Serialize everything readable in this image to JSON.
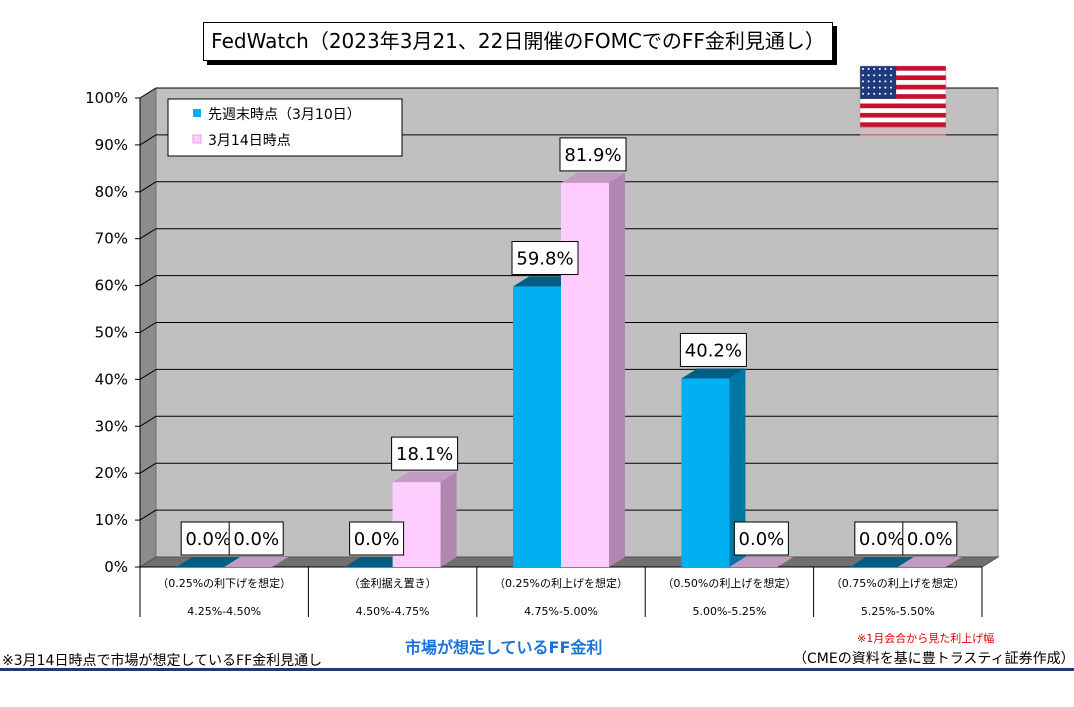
{
  "chart_data": {
    "type": "bar",
    "title": "FedWatch（2023年3月21、22日開催のFOMCでのFF金利見通し）",
    "xlabel": "市場が想定しているFF金利",
    "categories": [
      {
        "scenario": "（0.25%の利下げを想定）",
        "range": "4.25%-4.50%"
      },
      {
        "scenario": "（金利据え置き）",
        "range": "4.50%-4.75%"
      },
      {
        "scenario": "（0.25%の利上げを想定）",
        "range": "4.75%-5.00%"
      },
      {
        "scenario": "（0.50%の利上げを想定）",
        "range": "5.00%-5.25%"
      },
      {
        "scenario": "（0.75%の利上げを想定）",
        "range": "5.25%-5.50%"
      }
    ],
    "series": [
      {
        "name": "先週末時点（3月10日）",
        "color": "#00b0f0",
        "side": "#0076a3",
        "top": "#005e86",
        "values": [
          0.0,
          0.0,
          59.8,
          40.2,
          0.0
        ]
      },
      {
        "name": "3月14日時点",
        "color": "#ffccff",
        "side": "#b087b0",
        "top": "#c39ac3",
        "values": [
          0.0,
          18.1,
          81.9,
          0.0,
          0.0
        ]
      }
    ],
    "data_labels": [
      [
        "0.0%",
        "0.0%",
        "59.8%",
        "40.2%",
        "0.0%"
      ],
      [
        "0.0%",
        "18.1%",
        "81.9%",
        "0.0%",
        "0.0%"
      ]
    ],
    "yticks": [
      "0%",
      "10%",
      "20%",
      "30%",
      "40%",
      "50%",
      "60%",
      "70%",
      "80%",
      "90%",
      "100%"
    ],
    "ylim": [
      0,
      100
    ],
    "grid": true,
    "legend_position": "top-left"
  },
  "flag_icon": "us-flag-icon",
  "footer_note": "※3月14日時点で市場が想定しているFF金利見通し",
  "annotation_red": "※1月会合から見た利上げ幅",
  "source": "（CMEの資料を基に豊トラスティ証券作成）"
}
